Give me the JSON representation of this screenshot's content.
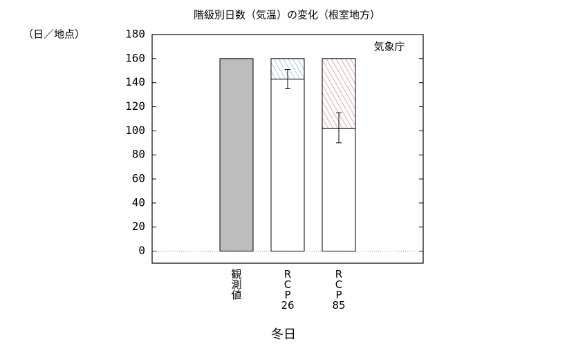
{
  "chart_data": {
    "type": "bar",
    "title": "階級別日数（気温）の変化（根室地方）",
    "y_label": "（日／地点）",
    "annotation": "気象庁",
    "x_label": "冬日",
    "categories": [
      "観測値",
      "RCP26",
      "RCP85"
    ],
    "series": [
      {
        "color": [
          "#bdbdbd",
          "#ffffff",
          "#ffffff"
        ],
        "values": [
          160,
          143,
          102
        ]
      },
      {
        "color": [
          "#5b9bc8",
          "#5b9bc8",
          "#d9534f"
        ],
        "hatch": true,
        "values": [
          null,
          17,
          58
        ]
      }
    ],
    "error_low": [
      null,
      135,
      90
    ],
    "error_high": [
      null,
      151,
      115
    ],
    "ylim": [
      -10,
      180
    ],
    "yticks": [
      0,
      20,
      40,
      60,
      80,
      100,
      120,
      140,
      160,
      180
    ]
  }
}
